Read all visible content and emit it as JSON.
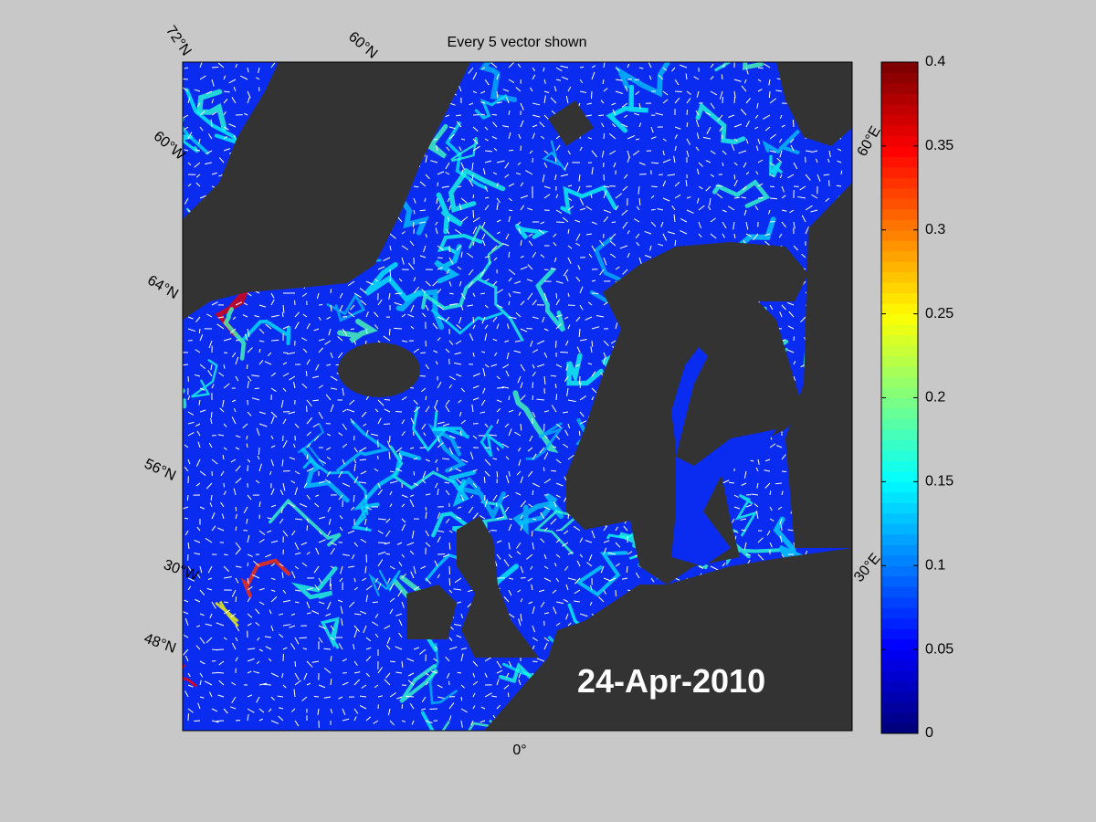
{
  "map": {
    "title": "Every 5 vector shown",
    "date": "24-Apr-2010",
    "graticule_labels": [
      "72°N",
      "60°N",
      "60°W",
      "64°N",
      "56°N",
      "30°W",
      "48°N",
      "0°",
      "60°E",
      "30°E"
    ]
  },
  "colorbar": {
    "lim": [
      0,
      0.4
    ],
    "ticks": [
      0,
      0.05,
      0.1,
      0.15,
      0.2,
      0.25,
      0.3,
      0.35,
      0.4
    ]
  }
}
